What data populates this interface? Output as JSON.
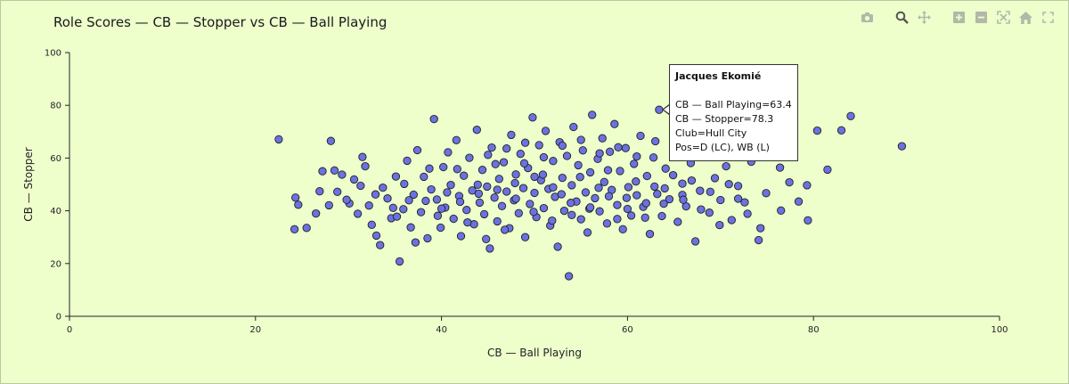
{
  "title": "Role Scores — CB — Stopper vs CB — Ball Playing",
  "modebar": [
    {
      "icon": "camera-icon",
      "label": "Download plot as png"
    },
    {
      "icon": "zoom-icon",
      "label": "Zoom"
    },
    {
      "icon": "pan-icon",
      "label": "Pan"
    },
    {
      "icon": "zoom-in-icon",
      "label": "Zoom in"
    },
    {
      "icon": "zoom-out-icon",
      "label": "Zoom out"
    },
    {
      "icon": "autoscale-icon",
      "label": "Autoscale"
    },
    {
      "icon": "home-icon",
      "label": "Reset axes"
    },
    {
      "icon": "fullscreen-icon",
      "label": "Toggle fullscreen"
    }
  ],
  "tooltip": {
    "name": "Jacques Ekomié",
    "line1": "CB — Ball Playing=63.4",
    "line2": "CB — Stopper=78.3",
    "line3": "Club=Hull City",
    "line4": "Pos=D (LC), WB (L)"
  },
  "chart_data": {
    "type": "scatter",
    "title": "Role Scores — CB — Stopper vs CB — Ball Playing",
    "xlabel": "CB — Ball Playing",
    "ylabel": "CB — Stopper",
    "xlim": [
      0,
      100
    ],
    "ylim": [
      0,
      100
    ],
    "xticks": [
      "0",
      "20",
      "40",
      "60",
      "80",
      "100"
    ],
    "yticks": [
      "0",
      "20",
      "40",
      "60",
      "80",
      "100"
    ],
    "grid": false,
    "marker_color": "#6b72e0",
    "points": [
      [
        22.5,
        67.1
      ],
      [
        24.2,
        33.0
      ],
      [
        24.3,
        45.0
      ],
      [
        24.6,
        42.3
      ],
      [
        25.5,
        33.5
      ],
      [
        26.5,
        39.0
      ],
      [
        26.9,
        47.4
      ],
      [
        27.2,
        55.0
      ],
      [
        27.9,
        42.1
      ],
      [
        28.1,
        66.5
      ],
      [
        28.5,
        55.3
      ],
      [
        28.8,
        47.2
      ],
      [
        29.3,
        53.7
      ],
      [
        30.1,
        42.8
      ],
      [
        31.0,
        38.9
      ],
      [
        31.3,
        49.5
      ],
      [
        31.8,
        56.9
      ],
      [
        32.2,
        42.0
      ],
      [
        32.5,
        34.7
      ],
      [
        33.0,
        30.6
      ],
      [
        33.7,
        48.8
      ],
      [
        34.2,
        44.7
      ],
      [
        34.6,
        37.2
      ],
      [
        35.1,
        53.0
      ],
      [
        35.5,
        20.8
      ],
      [
        35.9,
        40.6
      ],
      [
        36.3,
        59.0
      ],
      [
        36.7,
        33.7
      ],
      [
        37.0,
        46.1
      ],
      [
        37.4,
        63.0
      ],
      [
        37.8,
        39.5
      ],
      [
        38.1,
        52.9
      ],
      [
        38.5,
        29.6
      ],
      [
        38.9,
        48.1
      ],
      [
        39.2,
        74.8
      ],
      [
        39.5,
        44.3
      ],
      [
        39.9,
        33.6
      ],
      [
        40.2,
        56.6
      ],
      [
        40.4,
        41.2
      ],
      [
        40.7,
        62.2
      ],
      [
        41.0,
        49.8
      ],
      [
        41.3,
        37.0
      ],
      [
        41.6,
        66.8
      ],
      [
        41.9,
        45.6
      ],
      [
        42.1,
        30.4
      ],
      [
        42.4,
        53.3
      ],
      [
        42.7,
        40.3
      ],
      [
        43.0,
        60.1
      ],
      [
        43.3,
        47.7
      ],
      [
        43.5,
        34.9
      ],
      [
        43.8,
        70.7
      ],
      [
        44.1,
        43.1
      ],
      [
        44.4,
        55.5
      ],
      [
        44.6,
        38.7
      ],
      [
        44.9,
        49.2
      ],
      [
        45.2,
        25.7
      ],
      [
        45.4,
        64.0
      ],
      [
        45.7,
        45.0
      ],
      [
        46.0,
        36.0
      ],
      [
        46.2,
        52.1
      ],
      [
        46.5,
        41.8
      ],
      [
        46.7,
        58.4
      ],
      [
        47.0,
        47.3
      ],
      [
        47.3,
        33.4
      ],
      [
        47.5,
        68.8
      ],
      [
        47.8,
        44.0
      ],
      [
        48.0,
        53.8
      ],
      [
        48.3,
        39.1
      ],
      [
        48.5,
        61.6
      ],
      [
        48.8,
        48.6
      ],
      [
        49.0,
        30.0
      ],
      [
        49.3,
        56.2
      ],
      [
        49.5,
        42.6
      ],
      [
        49.8,
        75.4
      ],
      [
        50.0,
        46.8
      ],
      [
        50.2,
        37.6
      ],
      [
        50.5,
        64.9
      ],
      [
        50.7,
        51.6
      ],
      [
        51.0,
        41.0
      ],
      [
        51.2,
        70.3
      ],
      [
        51.5,
        48.3
      ],
      [
        51.7,
        34.4
      ],
      [
        52.0,
        58.9
      ],
      [
        52.2,
        45.3
      ],
      [
        52.5,
        26.4
      ],
      [
        52.7,
        66.0
      ],
      [
        53.0,
        52.5
      ],
      [
        53.2,
        40.0
      ],
      [
        53.5,
        60.8
      ],
      [
        53.7,
        15.2
      ],
      [
        54.0,
        49.7
      ],
      [
        54.2,
        71.8
      ],
      [
        54.5,
        43.5
      ],
      [
        54.7,
        57.3
      ],
      [
        55.0,
        36.8
      ],
      [
        55.2,
        62.9
      ],
      [
        55.5,
        47.0
      ],
      [
        55.7,
        31.8
      ],
      [
        56.0,
        54.6
      ],
      [
        56.2,
        76.4
      ],
      [
        56.5,
        44.8
      ],
      [
        56.8,
        59.7
      ],
      [
        57.0,
        39.8
      ],
      [
        57.3,
        67.5
      ],
      [
        57.5,
        50.9
      ],
      [
        57.8,
        35.2
      ],
      [
        58.1,
        62.4
      ],
      [
        58.3,
        47.9
      ],
      [
        58.6,
        72.9
      ],
      [
        58.9,
        42.2
      ],
      [
        59.2,
        55.1
      ],
      [
        59.5,
        33.0
      ],
      [
        59.8,
        63.8
      ],
      [
        60.1,
        49.0
      ],
      [
        60.4,
        38.2
      ],
      [
        60.7,
        57.8
      ],
      [
        61.0,
        45.9
      ],
      [
        61.4,
        68.4
      ],
      [
        61.7,
        41.5
      ],
      [
        62.1,
        53.2
      ],
      [
        62.4,
        31.2
      ],
      [
        62.8,
        60.2
      ],
      [
        63.2,
        46.4
      ],
      [
        63.4,
        78.3
      ],
      [
        63.7,
        38.0
      ],
      [
        64.1,
        56.0
      ],
      [
        64.5,
        44.4
      ],
      [
        65.0,
        62.0
      ],
      [
        65.4,
        35.8
      ],
      [
        65.9,
        50.3
      ],
      [
        66.3,
        41.7
      ],
      [
        66.8,
        58.1
      ],
      [
        67.3,
        28.4
      ],
      [
        67.8,
        47.6
      ],
      [
        68.3,
        64.4
      ],
      [
        68.8,
        39.3
      ],
      [
        69.4,
        52.4
      ],
      [
        70.0,
        44.1
      ],
      [
        70.6,
        56.9
      ],
      [
        71.2,
        36.5
      ],
      [
        71.9,
        49.4
      ],
      [
        72.6,
        43.2
      ],
      [
        73.3,
        58.6
      ],
      [
        74.1,
        28.9
      ],
      [
        74.9,
        46.7
      ],
      [
        75.7,
        61.2
      ],
      [
        76.5,
        40.1
      ],
      [
        77.4,
        50.8
      ],
      [
        78.4,
        43.5
      ],
      [
        79.4,
        36.4
      ],
      [
        80.4,
        70.4
      ],
      [
        81.5,
        55.6
      ],
      [
        83.0,
        70.5
      ],
      [
        84.0,
        75.9
      ],
      [
        89.5,
        64.5
      ],
      [
        74.3,
        33.4
      ],
      [
        76.4,
        56.4
      ],
      [
        79.3,
        49.7
      ],
      [
        75.0,
        67.0
      ],
      [
        69.5,
        66.3
      ],
      [
        30.6,
        51.9
      ],
      [
        33.4,
        27.0
      ],
      [
        34.8,
        41.1
      ],
      [
        36.0,
        50.2
      ],
      [
        37.2,
        28.0
      ],
      [
        38.3,
        43.8
      ],
      [
        39.6,
        38.1
      ],
      [
        40.6,
        47.0
      ],
      [
        41.7,
        55.8
      ],
      [
        42.8,
        35.6
      ],
      [
        43.9,
        49.9
      ],
      [
        44.8,
        29.3
      ],
      [
        45.8,
        57.7
      ],
      [
        46.8,
        32.8
      ],
      [
        47.9,
        50.5
      ],
      [
        48.9,
        58.0
      ],
      [
        49.9,
        39.6
      ],
      [
        50.9,
        53.7
      ],
      [
        51.9,
        36.3
      ],
      [
        52.9,
        46.3
      ],
      [
        53.9,
        43.0
      ],
      [
        54.9,
        52.8
      ],
      [
        55.9,
        40.8
      ],
      [
        56.9,
        48.7
      ],
      [
        57.9,
        55.4
      ],
      [
        58.9,
        36.9
      ],
      [
        59.9,
        44.9
      ],
      [
        60.9,
        51.1
      ],
      [
        61.9,
        37.4
      ],
      [
        62.9,
        49.2
      ],
      [
        63.9,
        42.7
      ],
      [
        64.9,
        53.5
      ],
      [
        65.9,
        46.0
      ],
      [
        66.9,
        51.5
      ],
      [
        67.9,
        40.5
      ],
      [
        68.9,
        47.2
      ],
      [
        69.9,
        34.6
      ],
      [
        70.9,
        50.1
      ],
      [
        71.9,
        44.6
      ],
      [
        72.9,
        38.9
      ],
      [
        40.0,
        40.8
      ],
      [
        42.0,
        43.4
      ],
      [
        44.0,
        46.5
      ],
      [
        46.0,
        48.0
      ],
      [
        48.0,
        44.6
      ],
      [
        50.0,
        52.9
      ],
      [
        52.0,
        48.9
      ],
      [
        54.0,
        38.4
      ],
      [
        56.0,
        41.3
      ],
      [
        58.0,
        45.5
      ],
      [
        60.0,
        40.7
      ],
      [
        62.0,
        42.9
      ],
      [
        64.0,
        48.5
      ],
      [
        66.0,
        44.2
      ],
      [
        45.0,
        61.2
      ],
      [
        47.0,
        63.6
      ],
      [
        49.0,
        65.8
      ],
      [
        51.0,
        60.3
      ],
      [
        53.0,
        64.7
      ],
      [
        55.0,
        66.9
      ],
      [
        57.0,
        61.8
      ],
      [
        59.0,
        64.1
      ],
      [
        61.0,
        60.6
      ],
      [
        63.0,
        66.4
      ],
      [
        36.5,
        44.0
      ],
      [
        38.7,
        56.0
      ],
      [
        35.2,
        37.8
      ],
      [
        32.9,
        46.2
      ],
      [
        31.5,
        60.4
      ],
      [
        29.8,
        44.2
      ]
    ]
  }
}
